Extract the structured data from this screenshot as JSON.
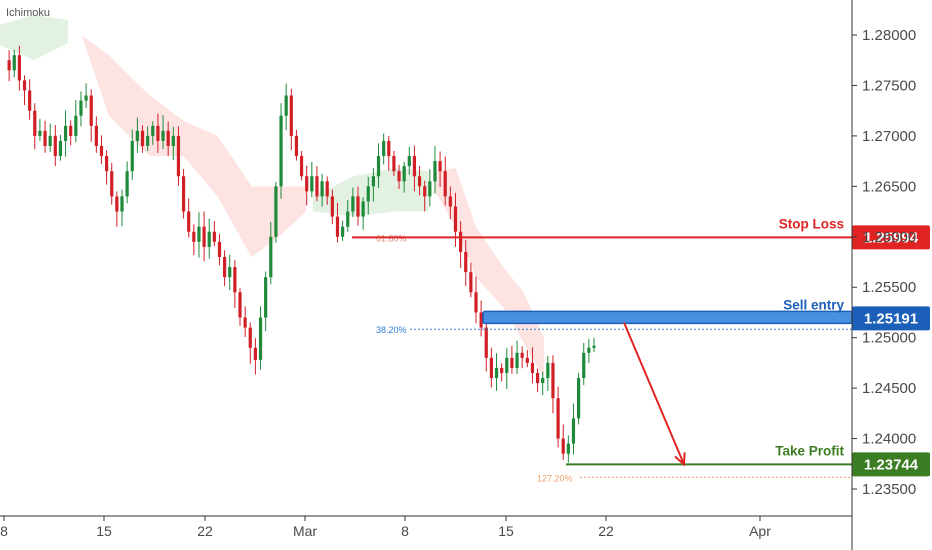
{
  "indicator_label": "Ichimoku",
  "colors": {
    "bull": "#1e8a3a",
    "bear": "#d11f26",
    "stop": "#e02424",
    "entry": "#1b5fb8",
    "take_profit": "#3b7d23",
    "cloud_bull": "#dff0df",
    "cloud_bear": "#fde0de",
    "fib_618": "#d9877a",
    "fib_382": "#2d7fd0",
    "fib_1272": "#f0a070"
  },
  "chart_data": {
    "type": "candlestick",
    "title": "",
    "y_ticks": [
      "1.28000",
      "1.27500",
      "1.27000",
      "1.26500",
      "1.26000",
      "1.25500",
      "1.25000",
      "1.24500",
      "1.24000",
      "1.23500"
    ],
    "x_ticks": [
      "8",
      "15",
      "22",
      "Mar",
      "8",
      "15",
      "22",
      "Apr"
    ],
    "ylim": [
      1.2322,
      1.2835
    ],
    "levels": [
      {
        "name": "Stop Loss",
        "value": 1.25994,
        "badge": "1.25994"
      },
      {
        "name": "Sell entry",
        "value": 1.25191,
        "badge": "1.25191"
      },
      {
        "name": "Take Profit",
        "value": 1.23744,
        "badge": "1.23744"
      }
    ],
    "fib_levels": [
      {
        "label": "61.80%",
        "value": 1.25994
      },
      {
        "label": "38.20%",
        "value": 1.25084
      },
      {
        "label": "127.20%",
        "value": 1.23615
      }
    ],
    "price_path": [
      1.2775,
      1.2765,
      1.278,
      1.2755,
      1.2745,
      1.2725,
      1.27,
      1.2705,
      1.269,
      1.27,
      1.268,
      1.2695,
      1.271,
      1.27,
      1.272,
      1.2735,
      1.274,
      1.271,
      1.269,
      1.268,
      1.2665,
      1.264,
      1.2625,
      1.264,
      1.2665,
      1.2695,
      1.2705,
      1.269,
      1.27,
      1.271,
      1.2695,
      1.2705,
      1.269,
      1.27,
      1.266,
      1.2625,
      1.2605,
      1.2595,
      1.261,
      1.259,
      1.2605,
      1.2595,
      1.258,
      1.256,
      1.257,
      1.2545,
      1.252,
      1.251,
      1.249,
      1.2478,
      1.252,
      1.256,
      1.26,
      1.265,
      1.272,
      1.274,
      1.27,
      1.268,
      1.266,
      1.2645,
      1.266,
      1.264,
      1.2655,
      1.264,
      1.262,
      1.26,
      1.261,
      1.2625,
      1.264,
      1.262,
      1.2635,
      1.265,
      1.266,
      1.268,
      1.2695,
      1.268,
      1.2665,
      1.2655,
      1.267,
      1.268,
      1.266,
      1.265,
      1.264,
      1.2655,
      1.2675,
      1.2665,
      1.264,
      1.263,
      1.2605,
      1.2585,
      1.2565,
      1.2545,
      1.2525,
      1.251,
      1.248,
      1.246,
      1.247,
      1.2465,
      1.248,
      1.247,
      1.2485,
      1.248,
      1.2475,
      1.2465,
      1.2455,
      1.246,
      1.2475,
      1.244,
      1.24,
      1.2385,
      1.2395,
      1.242,
      1.246,
      1.2485,
      1.249,
      1.2492
    ],
    "forecast": {
      "from": 1.2515,
      "to": 1.23744
    },
    "cloud": [
      {
        "type": "bull",
        "points": [
          [
            0.0,
            1.281,
            1.279
          ],
          [
            0.05,
            1.282,
            1.2775
          ],
          [
            0.1,
            1.2815,
            1.2792
          ]
        ]
      },
      {
        "type": "bear",
        "points": [
          [
            0.12,
            1.28,
            1.28
          ],
          [
            0.16,
            1.278,
            1.272
          ],
          [
            0.22,
            1.274,
            1.268
          ],
          [
            0.27,
            1.2715,
            1.268
          ],
          [
            0.32,
            1.27,
            1.264
          ],
          [
            0.37,
            1.265,
            1.258
          ],
          [
            0.41,
            1.265,
            1.26
          ],
          [
            0.45,
            1.265,
            1.2625
          ]
        ]
      },
      {
        "type": "bull",
        "points": [
          [
            0.46,
            1.264,
            1.2625
          ],
          [
            0.52,
            1.266,
            1.262
          ],
          [
            0.58,
            1.2668,
            1.2625
          ],
          [
            0.63,
            1.2665,
            1.2625
          ]
        ]
      },
      {
        "type": "bear",
        "points": [
          [
            0.64,
            1.2665,
            1.2645
          ],
          [
            0.67,
            1.2668,
            1.261
          ],
          [
            0.7,
            1.261,
            1.256
          ],
          [
            0.74,
            1.257,
            1.253
          ],
          [
            0.77,
            1.2545,
            1.2495
          ],
          [
            0.8,
            1.25,
            1.246
          ]
        ]
      }
    ]
  }
}
